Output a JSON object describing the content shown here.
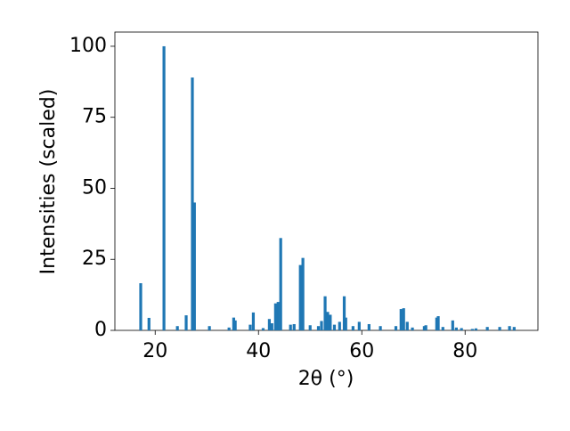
{
  "chart_data": {
    "type": "bar",
    "xlabel": "2θ (°)",
    "ylabel": "Intensities (scaled)",
    "x": [
      17.2,
      18.8,
      21.7,
      24.3,
      26.0,
      27.2,
      27.6,
      30.5,
      34.3,
      35.2,
      35.5,
      38.4,
      39.0,
      40.9,
      42.1,
      42.6,
      43.3,
      43.8,
      44.3,
      46.2,
      46.9,
      48.1,
      48.6,
      50.0,
      51.6,
      52.2,
      52.9,
      53.4,
      53.9,
      54.7,
      55.7,
      56.6,
      56.9,
      58.3,
      59.5,
      61.4,
      63.6,
      66.6,
      67.6,
      68.1,
      68.8,
      69.8,
      72.1,
      72.4,
      74.5,
      74.8,
      75.7,
      77.6,
      78.3,
      79.3,
      81.4,
      82.1,
      84.3,
      86.7,
      88.6,
      89.5
    ],
    "values": [
      16.6,
      4.4,
      100,
      1.5,
      5.3,
      89,
      45,
      1.5,
      1,
      4.5,
      3.5,
      2,
      6.3,
      0.8,
      4,
      2.5,
      9.5,
      10,
      32.5,
      2,
      2.2,
      23,
      25.5,
      1.8,
      1.5,
      3.3,
      12,
      6.5,
      5.5,
      2,
      3,
      12,
      4.5,
      1.5,
      3,
      2.2,
      1.5,
      1.5,
      7.5,
      7.8,
      3,
      1,
      1.5,
      1.8,
      4.5,
      5,
      1.2,
      3.5,
      1,
      0.8,
      0.5,
      0.7,
      1.2,
      1.2,
      1.5,
      1.2
    ],
    "color": "#1f77b4",
    "xlim": [
      12.2,
      94.1
    ],
    "xticks": [
      20,
      40,
      60,
      80
    ],
    "ylim": [
      0,
      105
    ],
    "yticks": [
      0,
      25,
      50,
      75,
      100
    ],
    "grid": false
  }
}
